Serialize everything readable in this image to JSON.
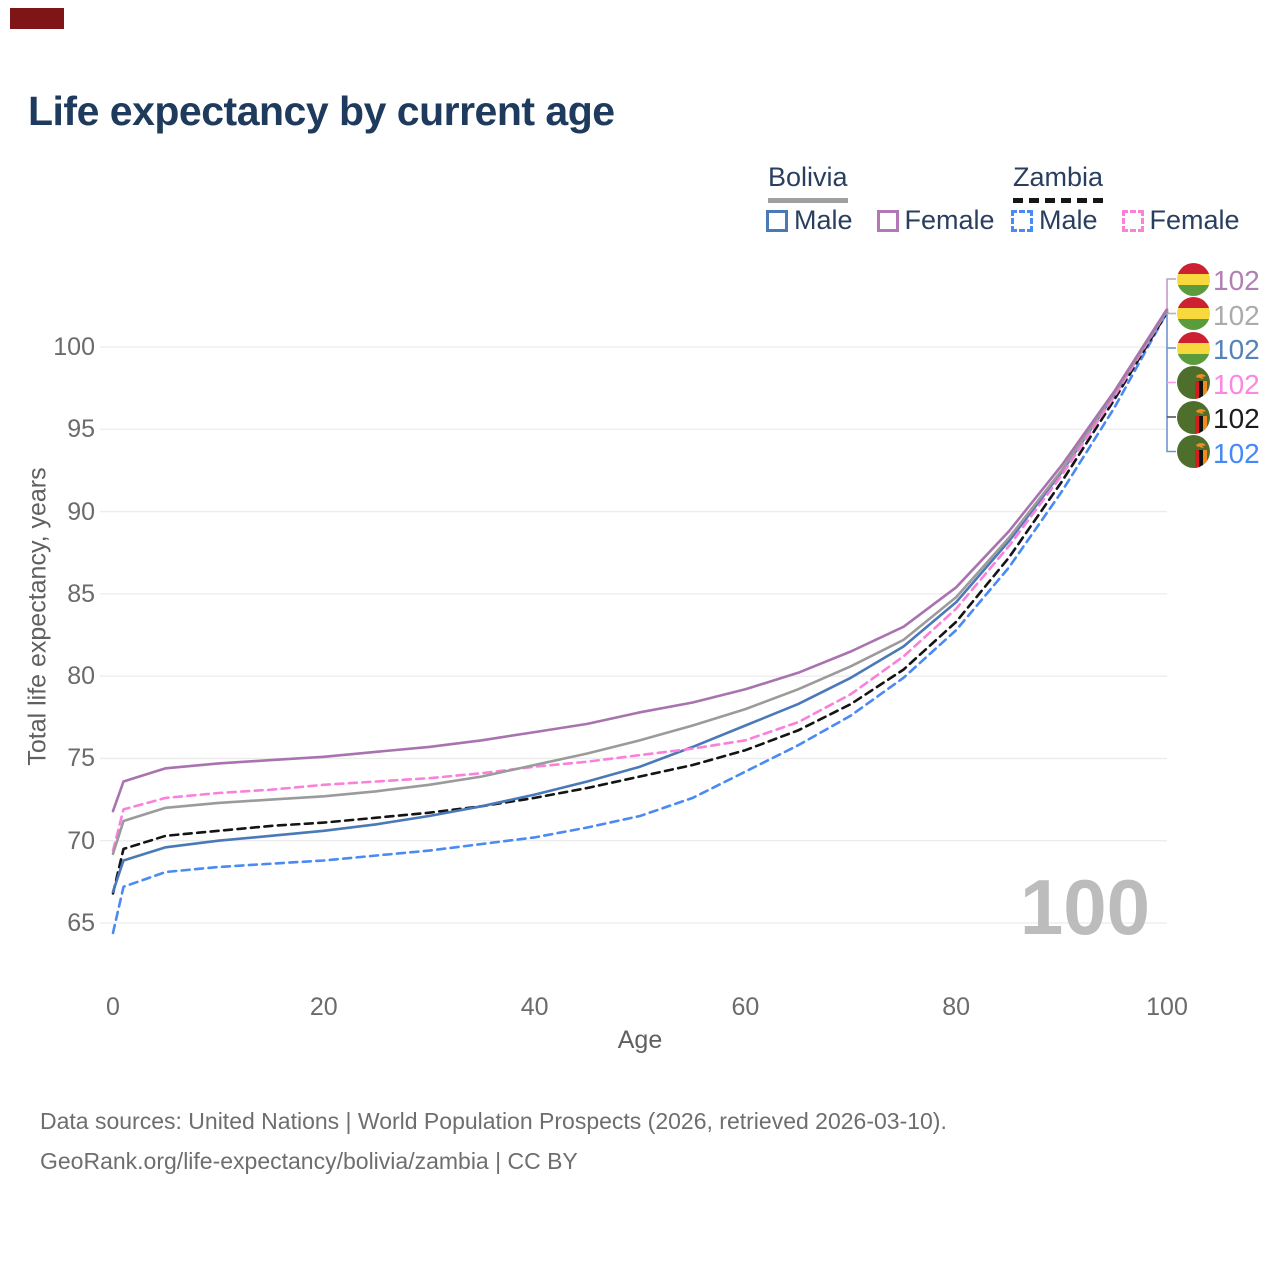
{
  "title": "Life expectancy by current age",
  "brand_mark_color": "#801518",
  "legend": {
    "male_label": "Male",
    "female_label": "Female",
    "groups": [
      {
        "name": "Bolivia",
        "style": "solid",
        "underline_color": "#a0a0a0",
        "items": [
          {
            "label": "Male",
            "color": "#4a79b8",
            "dashed": false
          },
          {
            "label": "Female",
            "color": "#b277b5",
            "dashed": false
          }
        ]
      },
      {
        "name": "Zambia",
        "style": "dashed",
        "underline_color": "#161616",
        "items": [
          {
            "label": "Male",
            "color": "#4a8af4",
            "dashed": true
          },
          {
            "label": "Female",
            "color": "#fb80db",
            "dashed": true
          }
        ]
      }
    ]
  },
  "chart_data": {
    "type": "line",
    "title": "Life expectancy by current age",
    "xlabel": "Age",
    "ylabel": "Total life expectancy, years",
    "x_ticks": [
      0,
      20,
      40,
      60,
      80,
      100
    ],
    "y_ticks": [
      65,
      70,
      75,
      80,
      85,
      90,
      95,
      100
    ],
    "xlim": [
      0,
      100
    ],
    "ylim": [
      63,
      104
    ],
    "grid": "horizontal-light",
    "legend_position": "top-right",
    "watermark": "100",
    "x": [
      0,
      1,
      5,
      10,
      15,
      20,
      25,
      30,
      35,
      40,
      45,
      50,
      55,
      60,
      65,
      70,
      75,
      80,
      85,
      90,
      95,
      100
    ],
    "series": [
      {
        "name": "Zambia Male",
        "country": "Zambia",
        "sex": "male",
        "color": "#4a8af4",
        "dash": true,
        "values": [
          64.4,
          67.2,
          68.1,
          68.4,
          68.6,
          68.8,
          69.1,
          69.4,
          69.8,
          70.2,
          70.8,
          71.5,
          72.6,
          74.2,
          75.8,
          77.6,
          79.9,
          82.8,
          86.6,
          91.2,
          96.3,
          102.1
        ]
      },
      {
        "name": "Zambia",
        "country": "Zambia",
        "sex": "both",
        "color": "#141414",
        "dash": true,
        "values": [
          66.8,
          69.5,
          70.3,
          70.6,
          70.9,
          71.1,
          71.4,
          71.7,
          72.1,
          72.6,
          73.2,
          73.9,
          74.6,
          75.5,
          76.7,
          78.3,
          80.4,
          83.3,
          87.2,
          91.8,
          96.8,
          102.1
        ]
      },
      {
        "name": "Bolivia Male",
        "country": "Bolivia",
        "sex": "male",
        "color": "#4a79b8",
        "dash": false,
        "values": [
          66.9,
          68.8,
          69.6,
          70.0,
          70.3,
          70.6,
          71.0,
          71.5,
          72.1,
          72.8,
          73.6,
          74.5,
          75.7,
          77.0,
          78.3,
          79.9,
          81.8,
          84.5,
          88.2,
          92.4,
          97.1,
          102.2
        ]
      },
      {
        "name": "Zambia Female",
        "country": "Zambia",
        "sex": "female",
        "color": "#fb80db",
        "dash": true,
        "values": [
          69.4,
          71.9,
          72.6,
          72.9,
          73.1,
          73.4,
          73.6,
          73.8,
          74.1,
          74.5,
          74.8,
          75.2,
          75.6,
          76.1,
          77.2,
          78.9,
          81.2,
          84.1,
          87.9,
          92.2,
          97.0,
          102.2
        ]
      },
      {
        "name": "Bolivia",
        "country": "Bolivia",
        "sex": "both",
        "color": "#9b9b9b",
        "dash": false,
        "values": [
          69.2,
          71.2,
          72.0,
          72.3,
          72.5,
          72.7,
          73.0,
          73.4,
          73.9,
          74.6,
          75.3,
          76.1,
          77.0,
          78.0,
          79.2,
          80.6,
          82.2,
          84.8,
          88.4,
          92.5,
          97.2,
          102.2
        ]
      },
      {
        "name": "Bolivia Female",
        "country": "Bolivia",
        "sex": "female",
        "color": "#a973b0",
        "dash": false,
        "values": [
          71.8,
          73.6,
          74.4,
          74.7,
          74.9,
          75.1,
          75.4,
          75.7,
          76.1,
          76.6,
          77.1,
          77.8,
          78.4,
          79.2,
          80.2,
          81.5,
          83.0,
          85.4,
          88.8,
          92.8,
          97.3,
          102.3
        ]
      }
    ]
  },
  "endpoints": [
    {
      "series": "Bolivia Female",
      "flag": "bolivia",
      "value": "102",
      "color": "#b27fb5"
    },
    {
      "series": "Bolivia",
      "flag": "bolivia",
      "value": "102",
      "color": "#ababab"
    },
    {
      "series": "Bolivia Male",
      "flag": "bolivia",
      "value": "102",
      "color": "#5582ba"
    },
    {
      "series": "Zambia Female",
      "flag": "zambia",
      "value": "102",
      "color": "#fb87e3"
    },
    {
      "series": "Zambia",
      "flag": "zambia",
      "value": "102",
      "color": "#1c1c1c"
    },
    {
      "series": "Zambia Male",
      "flag": "zambia",
      "value": "102",
      "color": "#4489f7"
    }
  ],
  "flags": {
    "bolivia": {
      "stripes": [
        "#cd2030",
        "#f7d93e",
        "#5a9c3c"
      ]
    },
    "zambia": {
      "field": "#4e6e2c",
      "bars": [
        "#d61c1c",
        "#111111",
        "#ef8b1f"
      ],
      "eagle": "#ef8b1f"
    }
  },
  "footer": {
    "line1": "Data sources: United Nations | World Population Prospects (2026, retrieved 2026-03-10).",
    "line2": "GeoRank.org/life-expectancy/bolivia/zambia | CC BY"
  }
}
